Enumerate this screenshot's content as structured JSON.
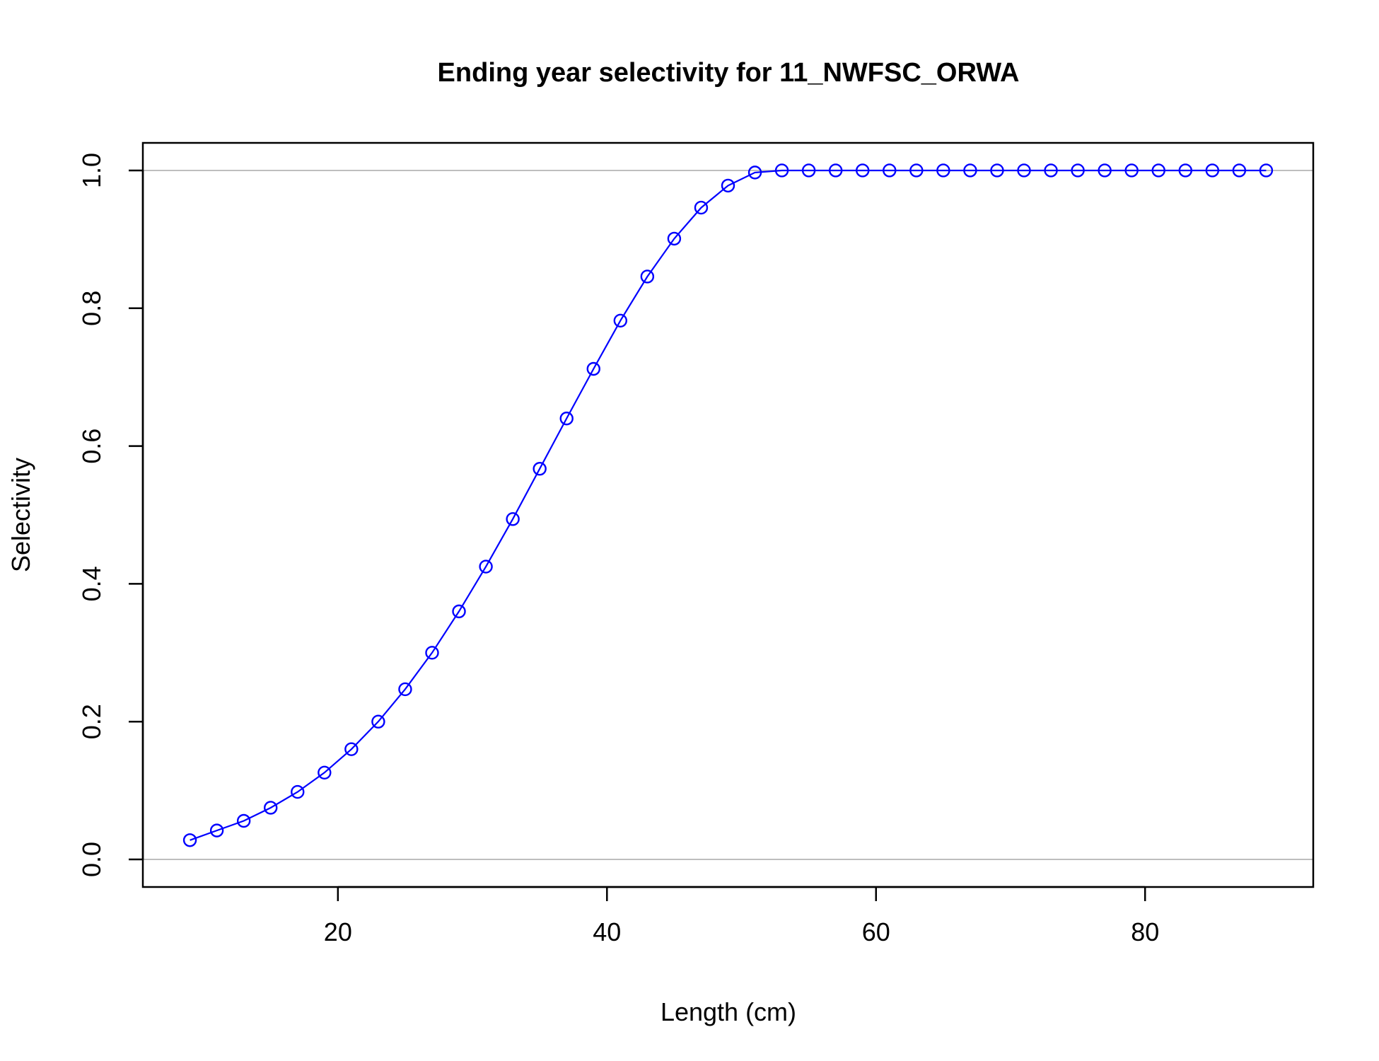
{
  "chart_data": {
    "type": "line",
    "title": "Ending year selectivity for 11_NWFSC_ORWA",
    "xlabel": "Length (cm)",
    "ylabel": "Selectivity",
    "xlim": [
      5.5,
      92.5
    ],
    "ylim": [
      -0.04,
      1.04
    ],
    "x_ticks": [
      20,
      40,
      60,
      80
    ],
    "x_tick_labels": [
      "20",
      "40",
      "60",
      "80"
    ],
    "y_ticks": [
      0.0,
      0.2,
      0.4,
      0.6,
      0.8,
      1.0
    ],
    "y_tick_labels": [
      "0.0",
      "0.2",
      "0.4",
      "0.6",
      "0.8",
      "1.0"
    ],
    "reference_lines_y": [
      0,
      1
    ],
    "grid": false,
    "series_color": "#0000ff",
    "reference_line_color": "#bebebe",
    "marker": "open-circle",
    "series": [
      {
        "x": [
          9,
          11,
          13,
          15,
          17,
          19,
          21,
          23,
          25,
          27,
          29,
          31,
          33,
          35,
          37,
          39,
          41,
          43,
          45,
          47,
          49,
          51,
          53,
          55,
          57,
          59,
          61,
          63,
          65,
          67,
          69,
          71,
          73,
          75,
          77,
          79,
          81,
          83,
          85,
          87,
          89
        ],
        "y": [
          0.028,
          0.042,
          0.056,
          0.075,
          0.098,
          0.126,
          0.16,
          0.2,
          0.247,
          0.3,
          0.36,
          0.425,
          0.494,
          0.567,
          0.64,
          0.712,
          0.782,
          0.846,
          0.901,
          0.946,
          0.978,
          0.997,
          1.0,
          1.0,
          1.0,
          1.0,
          1.0,
          1.0,
          1.0,
          1.0,
          1.0,
          1.0,
          1.0,
          1.0,
          1.0,
          1.0,
          1.0,
          1.0,
          1.0,
          1.0,
          1.0
        ]
      }
    ]
  }
}
